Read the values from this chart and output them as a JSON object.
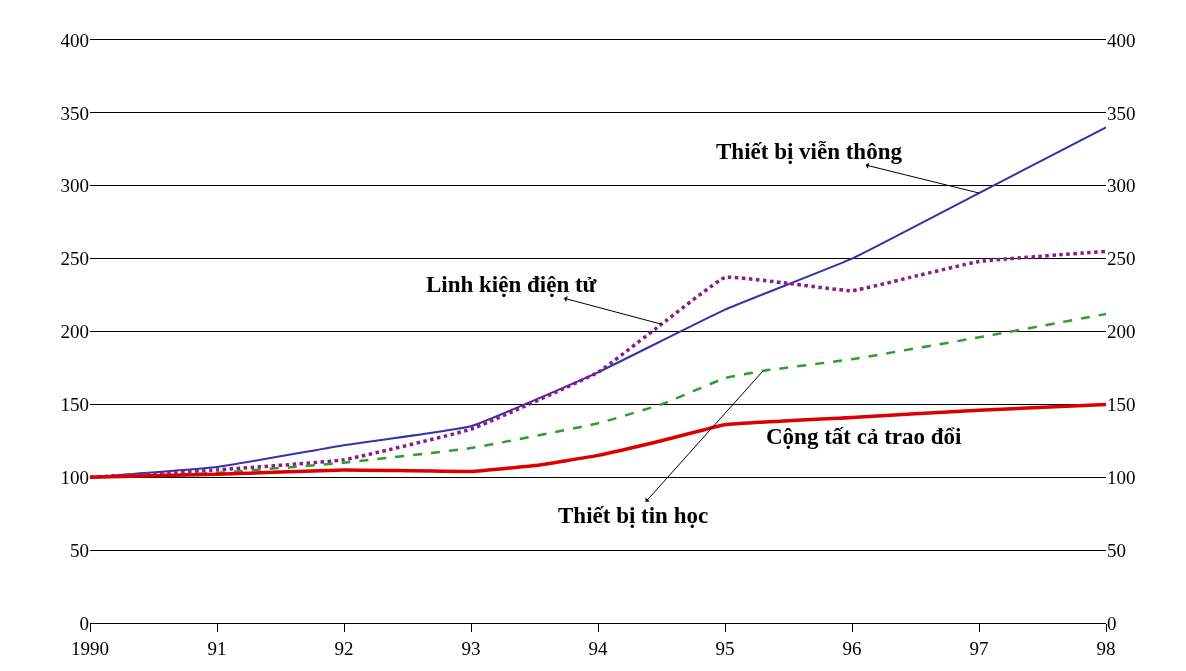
{
  "chart_data": {
    "type": "line",
    "xlim": [
      1990,
      1998
    ],
    "xticks": [
      1990,
      {
        "value": 1991,
        "label": "91"
      },
      {
        "value": 1992,
        "label": "92"
      },
      {
        "value": 1993,
        "label": "93"
      },
      {
        "value": 1994,
        "label": "94"
      },
      {
        "value": 1995,
        "label": "95"
      },
      {
        "value": 1996,
        "label": "96"
      },
      {
        "value": 1997,
        "label": "97"
      },
      {
        "value": 1998,
        "label": "98"
      }
    ],
    "ylim": [
      0,
      400
    ],
    "yticks": [
      0,
      50,
      100,
      150,
      200,
      250,
      300,
      350,
      400
    ],
    "y2lim": [
      0,
      400
    ],
    "y2ticks": [
      0,
      50,
      100,
      150,
      200,
      250,
      300,
      350,
      400
    ],
    "grid": "y",
    "series": [
      {
        "color": "#3333aa",
        "line_style": "solid",
        "x": [
          1990,
          1991,
          1992,
          1993,
          1994,
          1995,
          1996,
          1997,
          1998
        ],
        "values": [
          100,
          107,
          122,
          135,
          172,
          215,
          250,
          295,
          340
        ]
      },
      {
        "color": "#8b1a8b",
        "line_style": "dotted",
        "x": [
          1990,
          1991,
          1992,
          1993,
          1994,
          1994.5,
          1995,
          1995.5,
          1996,
          1996.5,
          1997,
          1998
        ],
        "values": [
          100,
          105,
          112,
          133,
          172,
          205,
          237,
          233,
          228,
          238,
          248,
          255
        ]
      },
      {
        "color": "#2e9e2e",
        "line_style": "dashed",
        "x": [
          1990,
          1991,
          1992,
          1993,
          1994,
          1994.5,
          1995,
          1995.3,
          1996,
          1997,
          1998
        ],
        "values": [
          100,
          103,
          110,
          120,
          137,
          150,
          168,
          173,
          181,
          196,
          212
        ]
      },
      {
        "color": "#dd0000",
        "line_style": "solid",
        "x": [
          1990,
          1991,
          1992,
          1993,
          1993.5,
          1994,
          1994.5,
          1995,
          1996,
          1997,
          1998
        ],
        "values": [
          100,
          102,
          105,
          104,
          108,
          115,
          125,
          136,
          141,
          146,
          150
        ]
      }
    ],
    "annotations": [
      {
        "text": "Thiết bị viễn thông",
        "x": 1997,
        "y": 295
      },
      {
        "text": "Linh kiện điện tử",
        "x": 1994.5,
        "y": 205
      },
      "Cộng tất cả trao đổi",
      {
        "text": "Thiết bị tin học",
        "x": 1995.3,
        "y": 173
      }
    ]
  }
}
